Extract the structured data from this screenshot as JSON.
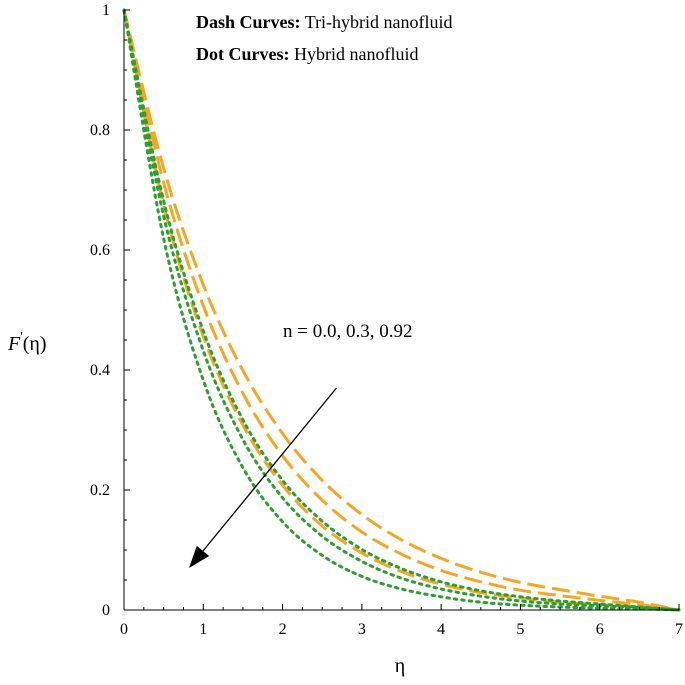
{
  "chart_data": {
    "type": "line",
    "xlabel": "η",
    "ylabel_main": "F",
    "ylabel_prime": "'",
    "ylabel_arg": "(η)",
    "xlim": [
      0,
      7
    ],
    "ylim": [
      0,
      1
    ],
    "x_ticks": [
      "0",
      "1",
      "2",
      "3",
      "4",
      "5",
      "6",
      "7"
    ],
    "y_ticks": [
      "0",
      "0.2",
      "0.4",
      "0.6",
      "0.8",
      "1"
    ],
    "grid": false,
    "legend": {
      "dash_key": "Dash Curves:",
      "dash_value": "Tri-hybrid nanofluid",
      "dot_key": "Dot Curves:",
      "dot_value": "Hybrid nanofluid"
    },
    "annotation": {
      "text": "n = 0.0, 0.3, 0.92",
      "arrow_from": [
        2.68,
        0.37
      ],
      "arrow_to": [
        0.82,
        0.07
      ]
    },
    "colors": {
      "dash": "#F5A623",
      "dot": "#2E9E2E"
    },
    "series": [
      {
        "style": "dash",
        "x": [
          0,
          0.5,
          1,
          1.5,
          2,
          2.5,
          3,
          3.5,
          4,
          4.5,
          5,
          5.5,
          6,
          6.5,
          7
        ],
        "y": [
          1,
          0.736,
          0.542,
          0.399,
          0.294,
          0.216,
          0.159,
          0.117,
          0.086,
          0.063,
          0.046,
          0.034,
          0.023,
          0.013,
          0
        ]
      },
      {
        "style": "dash",
        "x": [
          0,
          0.5,
          1,
          1.5,
          2,
          2.5,
          3,
          3.5,
          4,
          4.5,
          5,
          5.5,
          6,
          6.5,
          7
        ],
        "y": [
          1,
          0.712,
          0.507,
          0.361,
          0.257,
          0.183,
          0.13,
          0.093,
          0.066,
          0.047,
          0.033,
          0.024,
          0.016,
          0.009,
          0
        ]
      },
      {
        "style": "dash",
        "x": [
          0,
          0.5,
          1,
          1.5,
          2,
          2.5,
          3,
          3.5,
          4,
          4.5,
          5,
          5.5,
          6,
          6.5,
          7
        ],
        "y": [
          1,
          0.675,
          0.456,
          0.308,
          0.208,
          0.14,
          0.095,
          0.064,
          0.043,
          0.029,
          0.02,
          0.013,
          0.009,
          0.005,
          0
        ]
      },
      {
        "style": "dot",
        "x": [
          0,
          0.5,
          1,
          1.5,
          2,
          2.5,
          3,
          3.5,
          4,
          4.5,
          5,
          5.5,
          6,
          6.5,
          7
        ],
        "y": [
          1,
          0.682,
          0.465,
          0.317,
          0.216,
          0.148,
          0.101,
          0.069,
          0.047,
          0.032,
          0.022,
          0.015,
          0.01,
          0.005,
          0
        ]
      },
      {
        "style": "dot",
        "x": [
          0,
          0.5,
          1,
          1.5,
          2,
          2.5,
          3,
          3.5,
          4,
          4.5,
          5,
          5.5,
          6,
          6.5,
          7
        ],
        "y": [
          1,
          0.657,
          0.432,
          0.284,
          0.187,
          0.123,
          0.081,
          0.053,
          0.035,
          0.023,
          0.015,
          0.01,
          0.007,
          0.004,
          0
        ]
      },
      {
        "style": "dot",
        "x": [
          0,
          0.5,
          1,
          1.5,
          2,
          2.5,
          3,
          3.5,
          4,
          4.5,
          5,
          5.5,
          6,
          6.5,
          7
        ],
        "y": [
          1,
          0.619,
          0.383,
          0.237,
          0.147,
          0.091,
          0.056,
          0.035,
          0.022,
          0.013,
          0.008,
          0.005,
          0.003,
          0.002,
          0
        ]
      }
    ]
  }
}
